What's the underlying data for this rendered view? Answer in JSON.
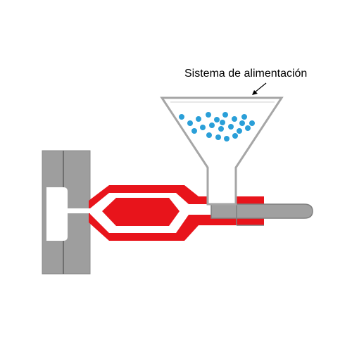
{
  "label": "Sistema de alimentación",
  "colors": {
    "steel": "#9e9e9e",
    "steel_dark": "#7f7f7f",
    "heater_red": "#e8141b",
    "plastic": "#ffffff",
    "pellets": "#2a9fd8",
    "funnel": "#a6a6a6"
  }
}
